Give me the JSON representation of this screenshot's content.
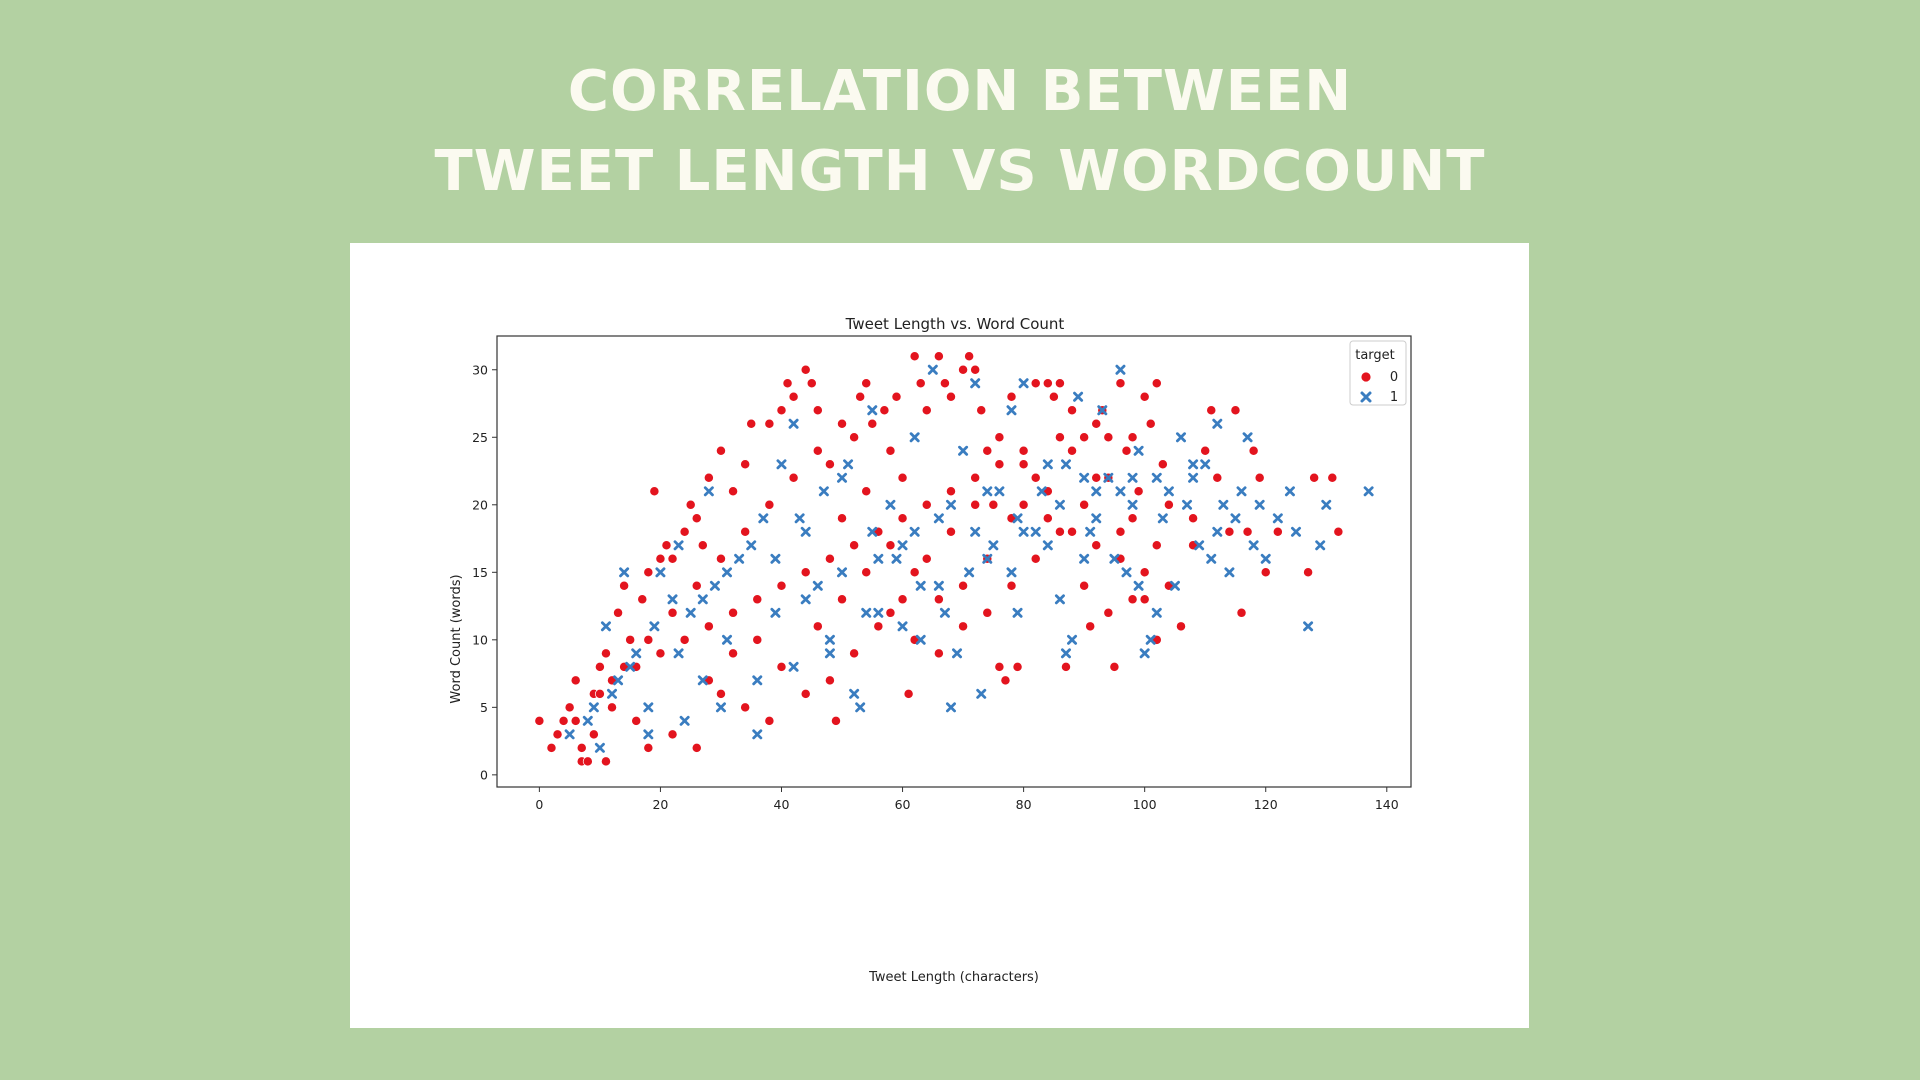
{
  "slide": {
    "title_line1": "CORRELATION BETWEEN",
    "title_line2": "TWEET LENGTH VS WORDCOUNT"
  },
  "colors": {
    "background": "#b3d1a2",
    "title_text": "#fbfaf0",
    "target_0": "#e3141e",
    "target_1": "#3a7dc0"
  },
  "chart_data": {
    "type": "scatter",
    "title": "Tweet Length vs. Word Count",
    "xlabel": "Tweet Length (characters)",
    "ylabel": "Word Count (words)",
    "xlim": [
      -7,
      144
    ],
    "ylim": [
      -0.9,
      32.5
    ],
    "xticks": [
      0,
      20,
      40,
      60,
      80,
      100,
      120,
      140
    ],
    "yticks": [
      0,
      5,
      10,
      15,
      20,
      25,
      30
    ],
    "grid": false,
    "legend": {
      "title": "target",
      "position": "top-right"
    },
    "series": [
      {
        "name": "0",
        "marker": "circle",
        "color": "#e3141e",
        "points": [
          [
            0,
            4
          ],
          [
            2,
            2
          ],
          [
            3,
            3
          ],
          [
            4,
            4
          ],
          [
            5,
            5
          ],
          [
            6,
            7
          ],
          [
            7,
            1
          ],
          [
            8,
            1
          ],
          [
            11,
            1
          ],
          [
            9,
            6
          ],
          [
            10,
            8
          ],
          [
            11,
            9
          ],
          [
            12,
            7
          ],
          [
            13,
            12
          ],
          [
            14,
            14
          ],
          [
            15,
            10
          ],
          [
            17,
            13
          ],
          [
            18,
            15
          ],
          [
            19,
            21
          ],
          [
            20,
            16
          ],
          [
            21,
            17
          ],
          [
            22,
            16
          ],
          [
            24,
            18
          ],
          [
            25,
            20
          ],
          [
            26,
            19
          ],
          [
            27,
            17
          ],
          [
            28,
            22
          ],
          [
            30,
            24
          ],
          [
            32,
            21
          ],
          [
            34,
            23
          ],
          [
            35,
            26
          ],
          [
            38,
            26
          ],
          [
            40,
            27
          ],
          [
            41,
            29
          ],
          [
            42,
            28
          ],
          [
            44,
            30
          ],
          [
            45,
            29
          ],
          [
            46,
            27
          ],
          [
            48,
            23
          ],
          [
            49,
            4
          ],
          [
            50,
            26
          ],
          [
            52,
            25
          ],
          [
            53,
            28
          ],
          [
            54,
            29
          ],
          [
            55,
            26
          ],
          [
            57,
            27
          ],
          [
            58,
            24
          ],
          [
            59,
            28
          ],
          [
            60,
            22
          ],
          [
            61,
            6
          ],
          [
            62,
            31
          ],
          [
            63,
            29
          ],
          [
            64,
            27
          ],
          [
            66,
            31
          ],
          [
            67,
            29
          ],
          [
            68,
            28
          ],
          [
            70,
            30
          ],
          [
            71,
            31
          ],
          [
            72,
            30
          ],
          [
            73,
            27
          ],
          [
            74,
            24
          ],
          [
            75,
            20
          ],
          [
            76,
            8
          ],
          [
            77,
            7
          ],
          [
            78,
            28
          ],
          [
            79,
            8
          ],
          [
            80,
            24
          ],
          [
            82,
            29
          ],
          [
            84,
            29
          ],
          [
            85,
            28
          ],
          [
            86,
            29
          ],
          [
            87,
            8
          ],
          [
            88,
            27
          ],
          [
            90,
            25
          ],
          [
            91,
            11
          ],
          [
            92,
            26
          ],
          [
            93,
            27
          ],
          [
            94,
            25
          ],
          [
            95,
            8
          ],
          [
            96,
            29
          ],
          [
            97,
            24
          ],
          [
            98,
            25
          ],
          [
            99,
            21
          ],
          [
            100,
            28
          ],
          [
            101,
            26
          ],
          [
            102,
            29
          ],
          [
            103,
            23
          ],
          [
            104,
            20
          ],
          [
            106,
            11
          ],
          [
            108,
            19
          ],
          [
            110,
            24
          ],
          [
            111,
            27
          ],
          [
            112,
            22
          ],
          [
            114,
            18
          ],
          [
            115,
            27
          ],
          [
            116,
            12
          ],
          [
            117,
            18
          ],
          [
            118,
            24
          ],
          [
            119,
            22
          ],
          [
            120,
            15
          ],
          [
            122,
            18
          ],
          [
            127,
            15
          ],
          [
            128,
            22
          ],
          [
            131,
            22
          ],
          [
            132,
            18
          ],
          [
            7,
            2
          ],
          [
            9,
            3
          ],
          [
            12,
            5
          ],
          [
            16,
            8
          ],
          [
            20,
            9
          ],
          [
            24,
            10
          ],
          [
            28,
            11
          ],
          [
            32,
            12
          ],
          [
            36,
            13
          ],
          [
            40,
            14
          ],
          [
            44,
            15
          ],
          [
            48,
            16
          ],
          [
            52,
            17
          ],
          [
            56,
            18
          ],
          [
            60,
            19
          ],
          [
            64,
            20
          ],
          [
            68,
            21
          ],
          [
            72,
            22
          ],
          [
            76,
            23
          ],
          [
            80,
            20
          ],
          [
            84,
            19
          ],
          [
            88,
            18
          ],
          [
            92,
            17
          ],
          [
            96,
            16
          ],
          [
            100,
            15
          ],
          [
            104,
            14
          ],
          [
            108,
            17
          ],
          [
            6,
            4
          ],
          [
            10,
            6
          ],
          [
            14,
            8
          ],
          [
            18,
            10
          ],
          [
            22,
            12
          ],
          [
            26,
            14
          ],
          [
            30,
            16
          ],
          [
            34,
            18
          ],
          [
            38,
            20
          ],
          [
            42,
            22
          ],
          [
            46,
            24
          ],
          [
            50,
            19
          ],
          [
            54,
            21
          ],
          [
            58,
            17
          ],
          [
            62,
            15
          ],
          [
            66,
            13
          ],
          [
            70,
            11
          ],
          [
            74,
            12
          ],
          [
            78,
            14
          ],
          [
            82,
            16
          ],
          [
            86,
            18
          ],
          [
            90,
            20
          ],
          [
            94,
            22
          ],
          [
            98,
            19
          ],
          [
            102,
            17
          ],
          [
            36,
            10
          ],
          [
            40,
            8
          ],
          [
            44,
            6
          ],
          [
            48,
            7
          ],
          [
            52,
            9
          ],
          [
            56,
            11
          ],
          [
            60,
            13
          ],
          [
            64,
            16
          ],
          [
            68,
            18
          ],
          [
            72,
            20
          ],
          [
            76,
            25
          ],
          [
            80,
            23
          ],
          [
            84,
            21
          ],
          [
            88,
            24
          ],
          [
            92,
            22
          ],
          [
            96,
            18
          ],
          [
            100,
            13
          ],
          [
            30,
            6
          ],
          [
            34,
            5
          ],
          [
            38,
            4
          ],
          [
            22,
            3
          ],
          [
            26,
            2
          ],
          [
            16,
            4
          ],
          [
            18,
            2
          ],
          [
            28,
            7
          ],
          [
            32,
            9
          ],
          [
            46,
            11
          ],
          [
            50,
            13
          ],
          [
            54,
            15
          ],
          [
            58,
            12
          ],
          [
            62,
            10
          ],
          [
            66,
            9
          ],
          [
            70,
            14
          ],
          [
            74,
            16
          ],
          [
            78,
            19
          ],
          [
            82,
            22
          ],
          [
            86,
            25
          ],
          [
            90,
            14
          ],
          [
            94,
            12
          ],
          [
            98,
            13
          ],
          [
            102,
            10
          ]
        ]
      },
      {
        "name": "1",
        "marker": "x",
        "color": "#3a7dc0",
        "points": [
          [
            5,
            3
          ],
          [
            8,
            4
          ],
          [
            10,
            2
          ],
          [
            11,
            11
          ],
          [
            13,
            7
          ],
          [
            14,
            15
          ],
          [
            16,
            9
          ],
          [
            18,
            5
          ],
          [
            20,
            15
          ],
          [
            22,
            13
          ],
          [
            23,
            17
          ],
          [
            25,
            12
          ],
          [
            27,
            7
          ],
          [
            28,
            21
          ],
          [
            29,
            14
          ],
          [
            31,
            10
          ],
          [
            33,
            16
          ],
          [
            36,
            3
          ],
          [
            37,
            19
          ],
          [
            39,
            12
          ],
          [
            40,
            23
          ],
          [
            42,
            26
          ],
          [
            44,
            18
          ],
          [
            46,
            14
          ],
          [
            48,
            9
          ],
          [
            50,
            22
          ],
          [
            52,
            6
          ],
          [
            53,
            5
          ],
          [
            55,
            27
          ],
          [
            56,
            12
          ],
          [
            58,
            20
          ],
          [
            60,
            17
          ],
          [
            62,
            25
          ],
          [
            63,
            10
          ],
          [
            65,
            30
          ],
          [
            66,
            19
          ],
          [
            68,
            5
          ],
          [
            69,
            9
          ],
          [
            70,
            24
          ],
          [
            72,
            29
          ],
          [
            73,
            6
          ],
          [
            74,
            16
          ],
          [
            76,
            21
          ],
          [
            78,
            27
          ],
          [
            79,
            12
          ],
          [
            80,
            29
          ],
          [
            82,
            18
          ],
          [
            84,
            23
          ],
          [
            86,
            13
          ],
          [
            87,
            9
          ],
          [
            88,
            10
          ],
          [
            89,
            28
          ],
          [
            90,
            16
          ],
          [
            92,
            19
          ],
          [
            93,
            27
          ],
          [
            94,
            22
          ],
          [
            96,
            30
          ],
          [
            97,
            15
          ],
          [
            98,
            20
          ],
          [
            99,
            24
          ],
          [
            100,
            9
          ],
          [
            101,
            10
          ],
          [
            102,
            12
          ],
          [
            104,
            21
          ],
          [
            105,
            14
          ],
          [
            106,
            25
          ],
          [
            108,
            22
          ],
          [
            109,
            17
          ],
          [
            110,
            23
          ],
          [
            111,
            16
          ],
          [
            112,
            26
          ],
          [
            113,
            20
          ],
          [
            114,
            15
          ],
          [
            115,
            19
          ],
          [
            116,
            21
          ],
          [
            117,
            25
          ],
          [
            118,
            17
          ],
          [
            119,
            20
          ],
          [
            120,
            16
          ],
          [
            122,
            19
          ],
          [
            124,
            21
          ],
          [
            125,
            18
          ],
          [
            127,
            11
          ],
          [
            129,
            17
          ],
          [
            130,
            20
          ],
          [
            137,
            21
          ],
          [
            9,
            5
          ],
          [
            12,
            6
          ],
          [
            15,
            8
          ],
          [
            19,
            11
          ],
          [
            23,
            9
          ],
          [
            27,
            13
          ],
          [
            31,
            15
          ],
          [
            35,
            17
          ],
          [
            39,
            16
          ],
          [
            43,
            19
          ],
          [
            47,
            21
          ],
          [
            51,
            23
          ],
          [
            55,
            18
          ],
          [
            59,
            16
          ],
          [
            63,
            14
          ],
          [
            67,
            12
          ],
          [
            71,
            15
          ],
          [
            75,
            17
          ],
          [
            79,
            19
          ],
          [
            83,
            21
          ],
          [
            87,
            23
          ],
          [
            91,
            18
          ],
          [
            95,
            16
          ],
          [
            99,
            14
          ],
          [
            103,
            19
          ],
          [
            107,
            20
          ],
          [
            18,
            3
          ],
          [
            24,
            4
          ],
          [
            30,
            5
          ],
          [
            36,
            7
          ],
          [
            42,
            8
          ],
          [
            48,
            10
          ],
          [
            54,
            12
          ],
          [
            60,
            11
          ],
          [
            66,
            14
          ],
          [
            72,
            18
          ],
          [
            78,
            15
          ],
          [
            84,
            17
          ],
          [
            90,
            22
          ],
          [
            96,
            21
          ],
          [
            102,
            22
          ],
          [
            108,
            23
          ],
          [
            112,
            18
          ],
          [
            44,
            13
          ],
          [
            50,
            15
          ],
          [
            56,
            16
          ],
          [
            62,
            18
          ],
          [
            68,
            20
          ],
          [
            74,
            21
          ],
          [
            80,
            18
          ],
          [
            86,
            20
          ],
          [
            92,
            21
          ],
          [
            98,
            22
          ]
        ]
      }
    ]
  }
}
